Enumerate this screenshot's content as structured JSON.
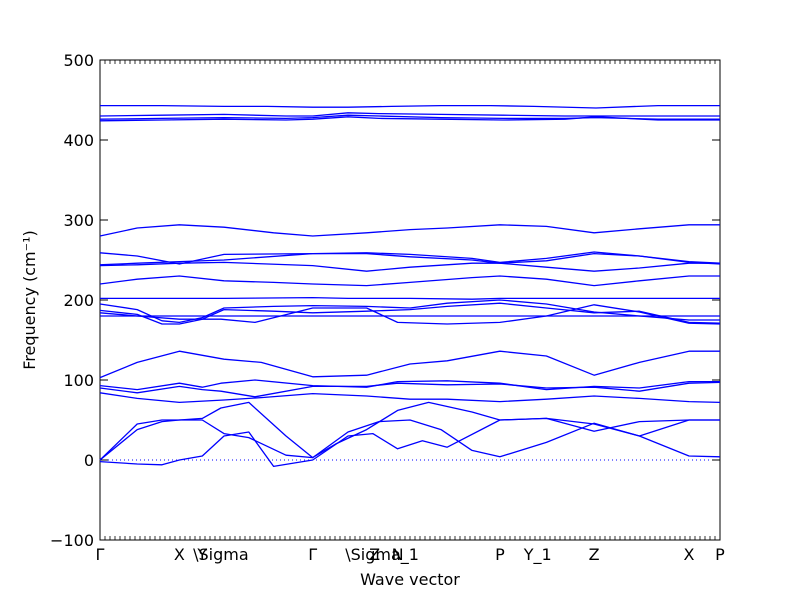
{
  "chart_data": {
    "type": "line",
    "title": "",
    "xlabel": "Wave vector",
    "ylabel": "Frequency (cm⁻¹)",
    "ylim": [
      -100,
      500
    ],
    "yticks": [
      -100,
      0,
      100,
      200,
      300,
      400,
      500
    ],
    "grid": false,
    "legend": "none",
    "line_color": "#0000ff",
    "zero_line": {
      "y": 0,
      "style": "dotted",
      "color": "#0000ff"
    },
    "x_positions": [
      0,
      0.128,
      0.165,
      0.195,
      0.343,
      0.443,
      0.455,
      0.48,
      0.645,
      0.706,
      0.797,
      0.95,
      1.0
    ],
    "x_labels": [
      "Γ",
      "X",
      "Y",
      "\\Sigma",
      "Γ",
      "Z",
      "\\Sigma_1",
      "N",
      "P",
      "Y_1",
      "Z",
      "X",
      "P"
    ],
    "series": [
      {
        "x": [
          0,
          0.06,
          0.1,
          0.2,
          0.27,
          0.343,
          0.4,
          0.47,
          0.55,
          0.63,
          0.7,
          0.8,
          0.9,
          0.97,
          1.0
        ],
        "y": [
          443,
          443,
          443,
          442,
          442,
          441,
          441,
          442,
          443,
          443,
          442,
          440,
          443,
          443,
          443
        ]
      },
      {
        "x": [
          0,
          0.1,
          0.2,
          0.3,
          0.343,
          0.4,
          0.45,
          0.55,
          0.65,
          0.75,
          0.8,
          0.9,
          1.0
        ],
        "y": [
          430,
          431,
          432,
          430,
          430,
          434,
          433,
          432,
          431,
          430,
          430,
          430,
          430
        ]
      },
      {
        "x": [
          0,
          0.1,
          0.2,
          0.3,
          0.343,
          0.4,
          0.45,
          0.55,
          0.65,
          0.75,
          0.8,
          0.9,
          1.0
        ],
        "y": [
          426,
          427,
          428,
          427,
          428,
          431,
          430,
          428,
          427,
          427,
          428,
          426,
          426
        ]
      },
      {
        "x": [
          0,
          0.1,
          0.2,
          0.3,
          0.343,
          0.4,
          0.45,
          0.55,
          0.65,
          0.75,
          0.8,
          0.9,
          1.0
        ],
        "y": [
          424,
          425,
          426,
          425,
          426,
          429,
          427,
          426,
          425,
          426,
          429,
          425,
          425
        ]
      },
      {
        "x": [
          0,
          0.06,
          0.128,
          0.2,
          0.28,
          0.343,
          0.43,
          0.5,
          0.56,
          0.645,
          0.72,
          0.797,
          0.87,
          0.95,
          1.0
        ],
        "y": [
          280,
          290,
          294,
          291,
          284,
          280,
          284,
          288,
          290,
          294,
          292,
          284,
          289,
          294,
          294
        ]
      },
      {
        "x": [
          0,
          0.06,
          0.128,
          0.2,
          0.343,
          0.43,
          0.5,
          0.6,
          0.645,
          0.72,
          0.797,
          0.87,
          0.95,
          1.0
        ],
        "y": [
          259,
          255,
          245,
          257,
          258,
          259,
          257,
          252,
          247,
          252,
          260,
          255,
          248,
          246
        ]
      },
      {
        "x": [
          0,
          0.06,
          0.128,
          0.2,
          0.343,
          0.43,
          0.5,
          0.6,
          0.645,
          0.72,
          0.797,
          0.87,
          0.95,
          1.0
        ],
        "y": [
          244,
          246,
          248,
          250,
          258,
          258,
          254,
          250,
          246,
          249,
          258,
          255,
          247,
          245
        ]
      },
      {
        "x": [
          0,
          0.06,
          0.128,
          0.2,
          0.343,
          0.43,
          0.5,
          0.6,
          0.645,
          0.72,
          0.797,
          0.87,
          0.95,
          1.0
        ],
        "y": [
          243,
          244,
          246,
          247,
          243,
          236,
          241,
          246,
          246,
          241,
          236,
          240,
          246,
          246
        ]
      },
      {
        "x": [
          0,
          0.06,
          0.128,
          0.2,
          0.28,
          0.343,
          0.43,
          0.5,
          0.6,
          0.645,
          0.72,
          0.797,
          0.87,
          0.95,
          1.0
        ],
        "y": [
          220,
          226,
          230,
          224,
          222,
          220,
          218,
          222,
          228,
          230,
          226,
          218,
          224,
          230,
          230
        ]
      },
      {
        "x": [
          0,
          0.06,
          0.128,
          0.2,
          0.343,
          0.4,
          0.5,
          0.6,
          0.645,
          0.72,
          0.797,
          0.87,
          0.95,
          1.0
        ],
        "y": [
          202,
          202,
          202,
          202,
          203,
          202,
          202,
          201,
          202,
          202,
          202,
          202,
          202,
          202
        ]
      },
      {
        "x": [
          0,
          0.06,
          0.1,
          0.128,
          0.165,
          0.2,
          0.28,
          0.343,
          0.43,
          0.5,
          0.56,
          0.645,
          0.72,
          0.797,
          0.87,
          0.95,
          1.0
        ],
        "y": [
          195,
          188,
          174,
          172,
          178,
          190,
          192,
          193,
          192,
          190,
          196,
          200,
          195,
          185,
          180,
          175,
          175
        ]
      },
      {
        "x": [
          0,
          0.06,
          0.1,
          0.128,
          0.165,
          0.2,
          0.28,
          0.343,
          0.43,
          0.5,
          0.56,
          0.645,
          0.72,
          0.797,
          0.87,
          0.95,
          1.0
        ],
        "y": [
          187,
          182,
          170,
          170,
          176,
          188,
          186,
          184,
          186,
          188,
          192,
          196,
          190,
          184,
          186,
          172,
          171
        ]
      },
      {
        "x": [
          0,
          0.06,
          0.128,
          0.165,
          0.195,
          0.25,
          0.343,
          0.43,
          0.48,
          0.56,
          0.645,
          0.72,
          0.797,
          0.87,
          0.95,
          1.0
        ],
        "y": [
          184,
          180,
          176,
          176,
          176,
          172,
          190,
          190,
          172,
          170,
          172,
          180,
          194,
          185,
          171,
          170
        ]
      },
      {
        "x": [
          0,
          0.1,
          0.2,
          0.343,
          0.45,
          0.55,
          0.645,
          0.75,
          0.8,
          0.9,
          1.0
        ],
        "y": [
          180,
          180,
          180,
          180,
          180,
          180,
          180,
          180,
          180,
          180,
          180
        ]
      },
      {
        "x": [
          0,
          0.06,
          0.128,
          0.2,
          0.26,
          0.343,
          0.43,
          0.5,
          0.56,
          0.645,
          0.72,
          0.797,
          0.87,
          0.95,
          1.0
        ],
        "y": [
          103,
          122,
          136,
          126,
          122,
          104,
          106,
          120,
          124,
          136,
          130,
          106,
          122,
          136,
          136
        ]
      },
      {
        "x": [
          0,
          0.06,
          0.128,
          0.165,
          0.195,
          0.25,
          0.343,
          0.43,
          0.48,
          0.56,
          0.645,
          0.72,
          0.797,
          0.87,
          0.95,
          1.0
        ],
        "y": [
          93,
          88,
          96,
          91,
          96,
          100,
          93,
          91,
          98,
          99,
          96,
          88,
          92,
          90,
          98,
          98
        ]
      },
      {
        "x": [
          0,
          0.06,
          0.128,
          0.165,
          0.195,
          0.25,
          0.343,
          0.43,
          0.48,
          0.56,
          0.645,
          0.72,
          0.797,
          0.87,
          0.95,
          1.0
        ],
        "y": [
          90,
          84,
          92,
          88,
          86,
          79,
          92,
          92,
          96,
          94,
          95,
          90,
          91,
          86,
          96,
          97
        ]
      },
      {
        "x": [
          0,
          0.06,
          0.128,
          0.2,
          0.26,
          0.343,
          0.43,
          0.5,
          0.56,
          0.645,
          0.72,
          0.797,
          0.87,
          0.95,
          1.0
        ],
        "y": [
          84,
          77,
          72,
          75,
          78,
          83,
          80,
          76,
          76,
          73,
          76,
          80,
          77,
          73,
          72
        ]
      },
      {
        "x": [
          0,
          0.06,
          0.1,
          0.128,
          0.165,
          0.195,
          0.24,
          0.3,
          0.343,
          0.38,
          0.43,
          0.48,
          0.53,
          0.6,
          0.645,
          0.72,
          0.797,
          0.87,
          0.95,
          1.0
        ],
        "y": [
          0,
          45,
          50,
          50,
          52,
          65,
          72,
          30,
          3,
          20,
          38,
          62,
          72,
          60,
          50,
          52,
          36,
          48,
          50,
          50
        ]
      },
      {
        "x": [
          0,
          0.06,
          0.1,
          0.128,
          0.165,
          0.2,
          0.24,
          0.3,
          0.343,
          0.4,
          0.45,
          0.5,
          0.55,
          0.6,
          0.645,
          0.72,
          0.797,
          0.87,
          0.95,
          1.0
        ],
        "y": [
          0,
          38,
          48,
          50,
          50,
          33,
          28,
          6,
          3,
          35,
          48,
          50,
          38,
          12,
          4,
          22,
          46,
          30,
          5,
          4
        ]
      },
      {
        "x": [
          0,
          0.06,
          0.1,
          0.128,
          0.165,
          0.2,
          0.24,
          0.28,
          0.343,
          0.4,
          0.44,
          0.48,
          0.52,
          0.56,
          0.645,
          0.72,
          0.797,
          0.87,
          0.95,
          1.0
        ],
        "y": [
          -2,
          -5,
          -6,
          0,
          5,
          30,
          35,
          -8,
          0,
          30,
          33,
          14,
          24,
          16,
          50,
          52,
          45,
          30,
          50,
          50
        ]
      }
    ]
  }
}
